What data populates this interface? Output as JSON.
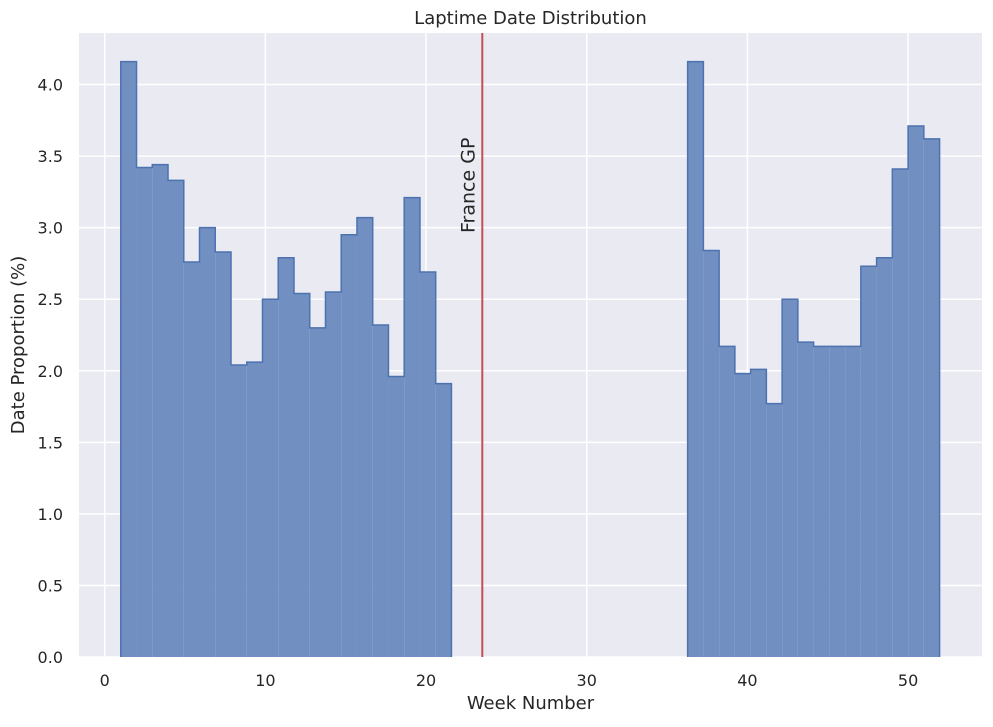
{
  "chart_data": {
    "type": "bar",
    "title": "Laptime Date Distribution",
    "xlabel": "Week Number",
    "ylabel": "Date Proportion (%)",
    "xlim": [
      -1.6,
      54.6
    ],
    "ylim": [
      0,
      4.36
    ],
    "grid": true,
    "x_ticks": [
      0,
      10,
      20,
      30,
      40,
      50
    ],
    "y_ticks": [
      0.0,
      0.5,
      1.0,
      1.5,
      2.0,
      2.5,
      3.0,
      3.5,
      4.0
    ],
    "bin_width": 0.98,
    "bins": [
      {
        "start": 1.0,
        "value": 4.16
      },
      {
        "start": 1.98,
        "value": 3.42
      },
      {
        "start": 2.96,
        "value": 3.44
      },
      {
        "start": 3.94,
        "value": 3.33
      },
      {
        "start": 4.92,
        "value": 2.76
      },
      {
        "start": 5.9,
        "value": 3.0
      },
      {
        "start": 6.88,
        "value": 2.83
      },
      {
        "start": 7.86,
        "value": 2.04
      },
      {
        "start": 8.84,
        "value": 2.06
      },
      {
        "start": 9.82,
        "value": 2.5
      },
      {
        "start": 10.8,
        "value": 2.79
      },
      {
        "start": 11.78,
        "value": 2.54
      },
      {
        "start": 12.76,
        "value": 2.3
      },
      {
        "start": 13.74,
        "value": 2.55
      },
      {
        "start": 14.72,
        "value": 2.95
      },
      {
        "start": 15.7,
        "value": 3.07
      },
      {
        "start": 16.68,
        "value": 2.32
      },
      {
        "start": 17.66,
        "value": 1.96
      },
      {
        "start": 18.64,
        "value": 3.21
      },
      {
        "start": 19.62,
        "value": 2.69
      },
      {
        "start": 20.6,
        "value": 1.91
      },
      {
        "start": 36.28,
        "value": 4.16
      },
      {
        "start": 37.26,
        "value": 2.84
      },
      {
        "start": 38.24,
        "value": 2.17
      },
      {
        "start": 39.22,
        "value": 1.98
      },
      {
        "start": 40.2,
        "value": 2.01
      },
      {
        "start": 41.18,
        "value": 1.77
      },
      {
        "start": 42.16,
        "value": 2.5
      },
      {
        "start": 43.14,
        "value": 2.2
      },
      {
        "start": 44.12,
        "value": 2.17
      },
      {
        "start": 45.1,
        "value": 2.17
      },
      {
        "start": 46.08,
        "value": 2.17
      },
      {
        "start": 47.06,
        "value": 2.73
      },
      {
        "start": 48.04,
        "value": 2.79
      },
      {
        "start": 49.02,
        "value": 3.41
      },
      {
        "start": 50.0,
        "value": 3.71
      },
      {
        "start": 50.98,
        "value": 3.62
      }
    ],
    "vline": {
      "x": 23.5,
      "label": "France GP",
      "color": "#c44e52"
    },
    "colors": {
      "bar_fill": "#7190c1",
      "bar_edge": "#4c72b0",
      "plot_background": "#eaeaf2",
      "grid": "#ffffff"
    }
  }
}
